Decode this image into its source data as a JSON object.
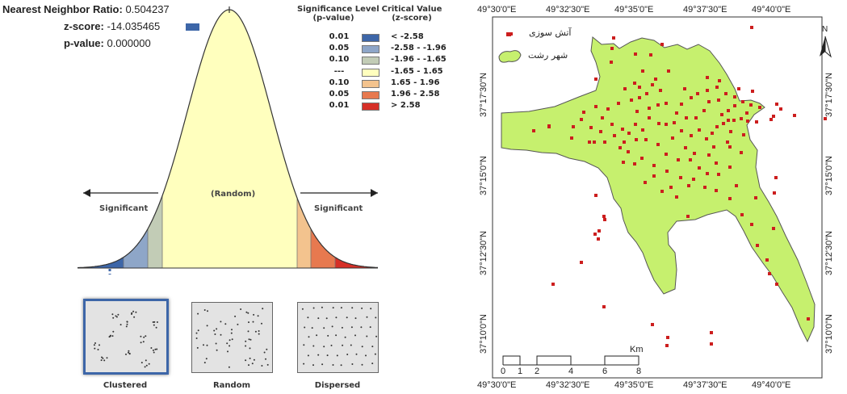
{
  "stats": {
    "ratio_label": "Nearest Neighbor Ratio:",
    "ratio_value": "0.504237",
    "z_label": "z-score:",
    "z_value": "-14.035465",
    "p_label": "p-value:",
    "p_value": "0.000000"
  },
  "legend": {
    "sig_header": [
      "Significance Level",
      "(p-value)"
    ],
    "crit_header": [
      "Critical Value",
      "(z-score)"
    ],
    "rows": [
      {
        "p": "0.01",
        "z": "< -2.58",
        "color": "#3d66a8"
      },
      {
        "p": "0.05",
        "z": "-2.58 - -1.96",
        "color": "#8ea6c8"
      },
      {
        "p": "0.10",
        "z": "-1.96 - -1.65",
        "color": "#c2ccb6"
      },
      {
        "p": "---",
        "z": "-1.65 - 1.65",
        "color": "#ffffbe"
      },
      {
        "p": "0.10",
        "z": "1.65 - 1.96",
        "color": "#f3c38e"
      },
      {
        "p": "0.05",
        "z": "1.96 - 2.58",
        "color": "#e7794f"
      },
      {
        "p": "0.01",
        "z": "> 2.58",
        "color": "#d62f27"
      }
    ]
  },
  "curve": {
    "random_label": "(Random)",
    "significant_left": "Significant",
    "significant_right": "Significant"
  },
  "patterns": {
    "clustered": "Clustered",
    "random": "Random",
    "dispersed": "Dispersed"
  },
  "map": {
    "top_ticks": [
      "49°30'0\"E",
      "49°32'30\"E",
      "49°35'0\"E",
      "49°37'30\"E",
      "49°40'0\"E"
    ],
    "bottom_ticks": [
      "49°30'0\"E",
      "49°32'30\"E",
      "49°35'0\"E",
      "49°37'30\"E",
      "49°40'0\"E"
    ],
    "left_ticks": [
      "37°17'30\"N",
      "37°15'0\"N",
      "37°12'30\"N",
      "37°10'0\"N"
    ],
    "right_ticks": [
      "37°17'30\"N",
      "37°15'0\"N",
      "37°12'30\"N",
      "37°10'0\"N"
    ],
    "legend_fire": "آتش سوزی",
    "legend_city": "شهر رشت",
    "north": "N",
    "scale_unit": "Km",
    "scale_labels": [
      "0",
      "1",
      "2",
      "4",
      "6",
      "8"
    ],
    "colors": {
      "city_fill": "#c6f06e",
      "point": "#cc1e1e"
    }
  }
}
